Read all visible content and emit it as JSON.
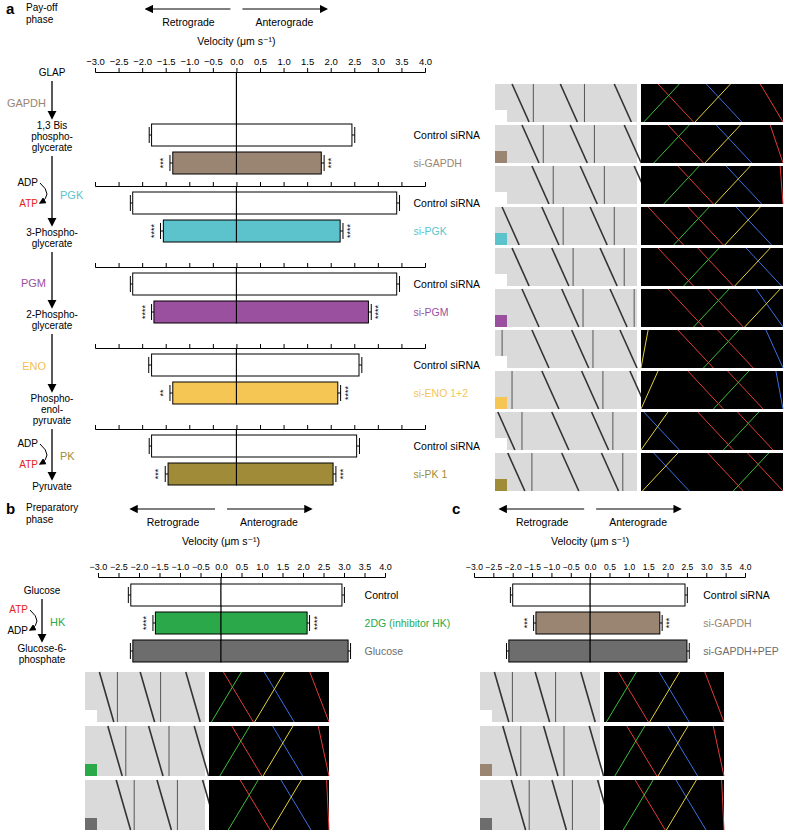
{
  "chart_data": [
    {
      "type": "bar",
      "orientation": "horizontal",
      "label": "a",
      "subtitle": [
        "Pay-off",
        "phase"
      ],
      "xlabel": "Velocity (μm s⁻¹)",
      "xlim": [
        -3,
        4
      ],
      "xticks": [
        {
          "value": -3,
          "label": "−3.0"
        },
        {
          "value": -2.5,
          "label": "−2.5"
        },
        {
          "value": -2,
          "label": "−2.0"
        },
        {
          "value": -1.5,
          "label": "−1.5"
        },
        {
          "value": -1,
          "label": "−1.0"
        },
        {
          "value": -0.5,
          "label": "−0.5"
        },
        {
          "value": 0,
          "label": "0.0"
        },
        {
          "value": 0.5,
          "label": "0.5"
        },
        {
          "value": 1,
          "label": "1.0"
        },
        {
          "value": 1.5,
          "label": "1.5"
        },
        {
          "value": 2,
          "label": "2.0"
        },
        {
          "value": 2.5,
          "label": "2.5"
        },
        {
          "value": 3,
          "label": "3.0"
        },
        {
          "value": 3.5,
          "label": "3.5"
        },
        {
          "value": 4,
          "label": "4.0"
        }
      ],
      "categories": [
        "Control siRNA",
        "si-GAPDH",
        "Control siRNA",
        "si-PGK",
        "Control siRNA",
        "si-PGM",
        "Control siRNA",
        "si-ENO 1+2",
        "Control siRNA",
        "si-PK 1"
      ],
      "colors": [
        "#ffffff",
        "#9a8472",
        "#ffffff",
        "#5cc3cc",
        "#ffffff",
        "#9b4f9f",
        "#ffffff",
        "#f6c655",
        "#ffffff",
        "#a08c38"
      ],
      "series": [
        {
          "name": "Retrograde",
          "values": [
            -1.8,
            -1.35,
            -2.2,
            -1.55,
            -2.2,
            -1.75,
            -1.8,
            -1.35,
            -1.8,
            -1.45
          ],
          "errors": [
            0.05,
            0.06,
            0.05,
            0.06,
            0.05,
            0.05,
            0.06,
            0.06,
            0.05,
            0.06
          ],
          "significance": [
            null,
            "***",
            null,
            "****",
            null,
            "****",
            null,
            "**",
            null,
            "***"
          ]
        },
        {
          "name": "Anterograde",
          "values": [
            2.45,
            1.8,
            3.4,
            2.2,
            3.4,
            2.8,
            2.6,
            2.15,
            2.55,
            2.05
          ],
          "errors": [
            0.06,
            0.06,
            0.06,
            0.06,
            0.06,
            0.06,
            0.06,
            0.06,
            0.06,
            0.06
          ],
          "significance": [
            null,
            "***",
            null,
            "****",
            null,
            "****",
            null,
            "****",
            null,
            "***"
          ]
        }
      ],
      "pathway": {
        "metabolites": [
          [
            "GLAP"
          ],
          [
            "1,3 Bis",
            "phospho-",
            "glycerate"
          ],
          [
            "3-Phospho-",
            "glycerate"
          ],
          [
            "2-Phospho-",
            "glycerate"
          ],
          [
            "Phospho-",
            "enol-",
            "pyruvate"
          ],
          [
            "Pyruvate"
          ]
        ],
        "enzymes": [
          {
            "name": "GAPDH",
            "color": "#9a8472"
          },
          {
            "name": "PGK",
            "color": "#5cc3cc",
            "cofactors": [
              {
                "name": "ADP",
                "color": "#000000"
              },
              {
                "name": "ATP",
                "color": "#e2231a"
              }
            ]
          },
          {
            "name": "PGM",
            "color": "#9b4f9f"
          },
          {
            "name": "ENO",
            "color": "#f5c04f"
          },
          {
            "name": "PK",
            "color": "#a38d36",
            "cofactors": [
              {
                "name": "ADP",
                "color": "#000000"
              },
              {
                "name": "ATP",
                "color": "#e2231a"
              }
            ]
          }
        ]
      }
    },
    {
      "type": "bar",
      "orientation": "horizontal",
      "label": "b",
      "subtitle": [
        "Preparatory",
        "phase"
      ],
      "xlabel": "Velocity (μm s⁻¹)",
      "xlim": [
        -3,
        4
      ],
      "xticks": [
        {
          "value": -3,
          "label": "−3.0"
        },
        {
          "value": -2.5,
          "label": "−2.5"
        },
        {
          "value": -2,
          "label": "−2.0"
        },
        {
          "value": -1.5,
          "label": "−1.5"
        },
        {
          "value": -1,
          "label": "−1.0"
        },
        {
          "value": -0.5,
          "label": "−0.5"
        },
        {
          "value": 0,
          "label": "0.0"
        },
        {
          "value": 0.5,
          "label": "0.5"
        },
        {
          "value": 1,
          "label": "1.0"
        },
        {
          "value": 1.5,
          "label": "1.5"
        },
        {
          "value": 2,
          "label": "2.0"
        },
        {
          "value": 2.5,
          "label": "2.5"
        },
        {
          "value": 3,
          "label": "3.0"
        },
        {
          "value": 3.5,
          "label": "3.5"
        },
        {
          "value": 4,
          "label": "4.0"
        }
      ],
      "categories": [
        "Control",
        "2DG (inhibitor HK)",
        "Glucose"
      ],
      "colors": [
        "#ffffff",
        "#2aa84a",
        "#6d6d6d"
      ],
      "series": [
        {
          "name": "Retrograde",
          "values": [
            -2.2,
            -1.6,
            -2.15
          ],
          "errors": [
            0.06,
            0.06,
            0.06
          ],
          "significance": [
            null,
            "****",
            null
          ]
        },
        {
          "name": "Anterograde",
          "values": [
            2.95,
            2.1,
            3.1
          ],
          "errors": [
            0.06,
            0.06,
            0.06
          ],
          "significance": [
            null,
            "****",
            null
          ]
        }
      ],
      "pathway": {
        "metabolites": [
          [
            "Glucose"
          ],
          [
            "Glucose-6-",
            "phosphate"
          ]
        ],
        "enzymes": [
          {
            "name": "HK",
            "color": "#2aa84a",
            "cofactors": [
              {
                "name": "ATP",
                "color": "#e2231a"
              },
              {
                "name": "ADP",
                "color": "#000000"
              }
            ]
          }
        ]
      }
    },
    {
      "type": "bar",
      "orientation": "horizontal",
      "label": "c",
      "xlabel": "Velocity (μm s⁻¹)",
      "xlim": [
        -3,
        4
      ],
      "xticks": [
        {
          "value": -3,
          "label": "−3.0"
        },
        {
          "value": -2.5,
          "label": "−2.5"
        },
        {
          "value": -2,
          "label": "−2.0"
        },
        {
          "value": -1.5,
          "label": "−1.5"
        },
        {
          "value": -1,
          "label": "−1.0"
        },
        {
          "value": -0.5,
          "label": "−0.5"
        },
        {
          "value": 0,
          "label": "0.0"
        },
        {
          "value": 0.5,
          "label": "0.5"
        },
        {
          "value": 1,
          "label": "1.0"
        },
        {
          "value": 1.5,
          "label": "1.5"
        },
        {
          "value": 2,
          "label": "2.0"
        },
        {
          "value": 2.5,
          "label": "2.5"
        },
        {
          "value": 3,
          "label": "3.0"
        },
        {
          "value": 3.5,
          "label": "3.5"
        },
        {
          "value": 4,
          "label": "4.0"
        }
      ],
      "categories": [
        "Control siRNA",
        "si-GAPDH",
        "si-GAPDH+PEP"
      ],
      "colors": [
        "#ffffff",
        "#9a8472",
        "#6d6d6d"
      ],
      "series": [
        {
          "name": "Retrograde",
          "values": [
            -2.0,
            -1.4,
            -2.1
          ],
          "errors": [
            0.06,
            0.06,
            0.06
          ],
          "significance": [
            null,
            "***",
            null
          ]
        },
        {
          "name": "Anterograde",
          "values": [
            2.45,
            1.8,
            2.5
          ],
          "errors": [
            0.06,
            0.06,
            0.06
          ],
          "significance": [
            null,
            "***",
            null
          ]
        }
      ]
    }
  ]
}
